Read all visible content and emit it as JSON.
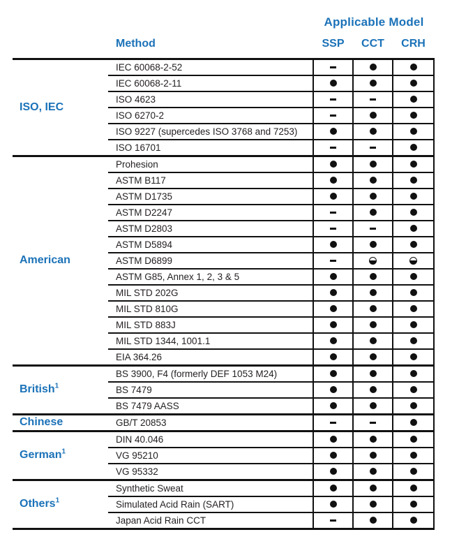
{
  "header": {
    "applicable_model": "Applicable Model",
    "method": "Method",
    "columns": [
      "SSP",
      "CCT",
      "CRH"
    ]
  },
  "colors": {
    "accent_blue": "#1B72B8",
    "text_dark": "#231F20",
    "line_black": "#111111"
  },
  "marks_legend": {
    "dot": "applicable (filled circle)",
    "dash": "not applicable (dash)",
    "half": "partially applicable (half-filled circle)"
  },
  "groups": [
    {
      "label": "ISO, IEC",
      "superscript": "",
      "rows": [
        {
          "method": "IEC 60068-2-52",
          "marks": [
            "dash",
            "dot",
            "dot"
          ]
        },
        {
          "method": "IEC 60068-2-11",
          "marks": [
            "dot",
            "dot",
            "dot"
          ]
        },
        {
          "method": "ISO 4623",
          "marks": [
            "dash",
            "dash",
            "dot"
          ]
        },
        {
          "method": "ISO 6270-2",
          "marks": [
            "dash",
            "dot",
            "dot"
          ]
        },
        {
          "method": "ISO 9227 (supercedes ISO 3768 and 7253)",
          "marks": [
            "dot",
            "dot",
            "dot"
          ]
        },
        {
          "method": "ISO 16701",
          "marks": [
            "dash",
            "dash",
            "dot"
          ]
        }
      ]
    },
    {
      "label": "American",
      "superscript": "",
      "rows": [
        {
          "method": "Prohesion",
          "marks": [
            "dot",
            "dot",
            "dot"
          ]
        },
        {
          "method": "ASTM B117",
          "marks": [
            "dot",
            "dot",
            "dot"
          ]
        },
        {
          "method": "ASTM D1735",
          "marks": [
            "dot",
            "dot",
            "dot"
          ]
        },
        {
          "method": "ASTM D2247",
          "marks": [
            "dash",
            "dot",
            "dot"
          ]
        },
        {
          "method": "ASTM D2803",
          "marks": [
            "dash",
            "dash",
            "dot"
          ]
        },
        {
          "method": "ASTM D5894",
          "marks": [
            "dot",
            "dot",
            "dot"
          ]
        },
        {
          "method": "ASTM D6899",
          "marks": [
            "dash",
            "half",
            "half"
          ]
        },
        {
          "method": "ASTM G85, Annex 1, 2, 3 & 5",
          "marks": [
            "dot",
            "dot",
            "dot"
          ]
        },
        {
          "method": "MIL STD 202G",
          "marks": [
            "dot",
            "dot",
            "dot"
          ]
        },
        {
          "method": "MIL STD 810G",
          "marks": [
            "dot",
            "dot",
            "dot"
          ]
        },
        {
          "method": "MIL STD 883J",
          "marks": [
            "dot",
            "dot",
            "dot"
          ]
        },
        {
          "method": "MIL STD 1344, 1001.1",
          "marks": [
            "dot",
            "dot",
            "dot"
          ]
        },
        {
          "method": "EIA 364.26",
          "marks": [
            "dot",
            "dot",
            "dot"
          ]
        }
      ]
    },
    {
      "label": "British",
      "superscript": "1",
      "rows": [
        {
          "method": "BS 3900, F4 (formerly DEF 1053 M24)",
          "marks": [
            "dot",
            "dot",
            "dot"
          ]
        },
        {
          "method": "BS 7479",
          "marks": [
            "dot",
            "dot",
            "dot"
          ]
        },
        {
          "method": "BS 7479 AASS",
          "marks": [
            "dot",
            "dot",
            "dot"
          ]
        }
      ]
    },
    {
      "label": "Chinese",
      "superscript": "",
      "rows": [
        {
          "method": "GB/T 20853",
          "marks": [
            "dash",
            "dash",
            "dot"
          ]
        }
      ]
    },
    {
      "label": "German",
      "superscript": "1",
      "rows": [
        {
          "method": "DIN 40.046",
          "marks": [
            "dot",
            "dot",
            "dot"
          ]
        },
        {
          "method": "VG 95210",
          "marks": [
            "dot",
            "dot",
            "dot"
          ]
        },
        {
          "method": "VG 95332",
          "marks": [
            "dot",
            "dot",
            "dot"
          ]
        }
      ]
    },
    {
      "label": "Others",
      "superscript": "1",
      "rows": [
        {
          "method": "Synthetic Sweat",
          "marks": [
            "dot",
            "dot",
            "dot"
          ]
        },
        {
          "method": "Simulated Acid Rain (SART)",
          "marks": [
            "dot",
            "dot",
            "dot"
          ]
        },
        {
          "method": "Japan Acid Rain CCT",
          "marks": [
            "dash",
            "dot",
            "dot"
          ]
        }
      ]
    }
  ]
}
